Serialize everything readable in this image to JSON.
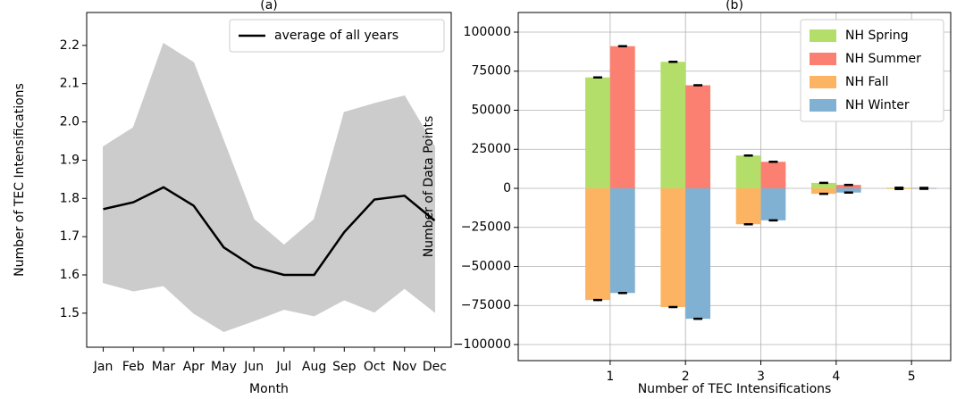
{
  "chart_data": [
    {
      "type": "line",
      "title": "(a)",
      "x_label": "Month",
      "y_label": "Number of TEC Intensifications",
      "categories": [
        "Jan",
        "Feb",
        "Mar",
        "Apr",
        "May",
        "Jun",
        "Jul",
        "Aug",
        "Sep",
        "Oct",
        "Nov",
        "Dec"
      ],
      "series": [
        {
          "name": "average of all years",
          "color": "#000000",
          "values": [
            1.772,
            1.79,
            1.829,
            1.781,
            1.672,
            1.621,
            1.6,
            1.6,
            1.712,
            1.797,
            1.807,
            1.742
          ]
        }
      ],
      "band": {
        "color": "#cccccc",
        "upper": [
          1.935,
          1.985,
          2.205,
          2.155,
          1.95,
          1.745,
          1.678,
          1.745,
          2.025,
          2.048,
          2.068,
          1.935
        ],
        "lower": [
          1.58,
          1.558,
          1.572,
          1.5,
          1.452,
          1.48,
          1.51,
          1.493,
          1.535,
          1.503,
          1.565,
          1.503
        ]
      },
      "ylim": [
        1.411,
        2.286
      ],
      "yticks": [
        1.5,
        1.6,
        1.7,
        1.8,
        1.9,
        {
          "value": 2.0,
          "label": "2.0"
        },
        2.1,
        2.2
      ],
      "grid": false,
      "legend": "upper right"
    },
    {
      "type": "bar",
      "title": "(b)",
      "x_label": "Number of TEC Intensifications",
      "y_label": "Number of Data Points",
      "x": [
        1,
        2,
        3,
        4,
        5
      ],
      "series": [
        {
          "name": "NH Spring",
          "color": "#b3de69",
          "values": [
            71000,
            81000,
            21000,
            3500,
            400
          ],
          "errors": [
            600,
            600,
            500,
            300,
            200
          ]
        },
        {
          "name": "NH Summer",
          "color": "#fb8072",
          "values": [
            91000,
            66000,
            17000,
            2200,
            300
          ],
          "errors": [
            600,
            600,
            500,
            300,
            200
          ]
        },
        {
          "name": "NH Fall",
          "color": "#fdb462",
          "values": [
            -71500,
            -76000,
            -23000,
            -3500,
            -400
          ],
          "errors": [
            600,
            600,
            500,
            300,
            200
          ]
        },
        {
          "name": "NH Winter",
          "color": "#80b1d3",
          "values": [
            -67000,
            -83500,
            -20500,
            -2700,
            -300
          ],
          "errors": [
            600,
            600,
            500,
            300,
            200
          ]
        }
      ],
      "xlim": [
        -0.22,
        5.52
      ],
      "xticks": [
        1,
        2,
        3,
        4,
        5
      ],
      "ylim": [
        -110286,
        112571
      ],
      "yticks": [
        {
          "value": -100000,
          "label": "−100000"
        },
        {
          "value": -75000,
          "label": "−75000"
        },
        {
          "value": -50000,
          "label": "−50000"
        },
        {
          "value": -25000,
          "label": "−25000"
        },
        0,
        25000,
        50000,
        75000,
        100000
      ],
      "grid": true,
      "legend": "upper right"
    }
  ]
}
